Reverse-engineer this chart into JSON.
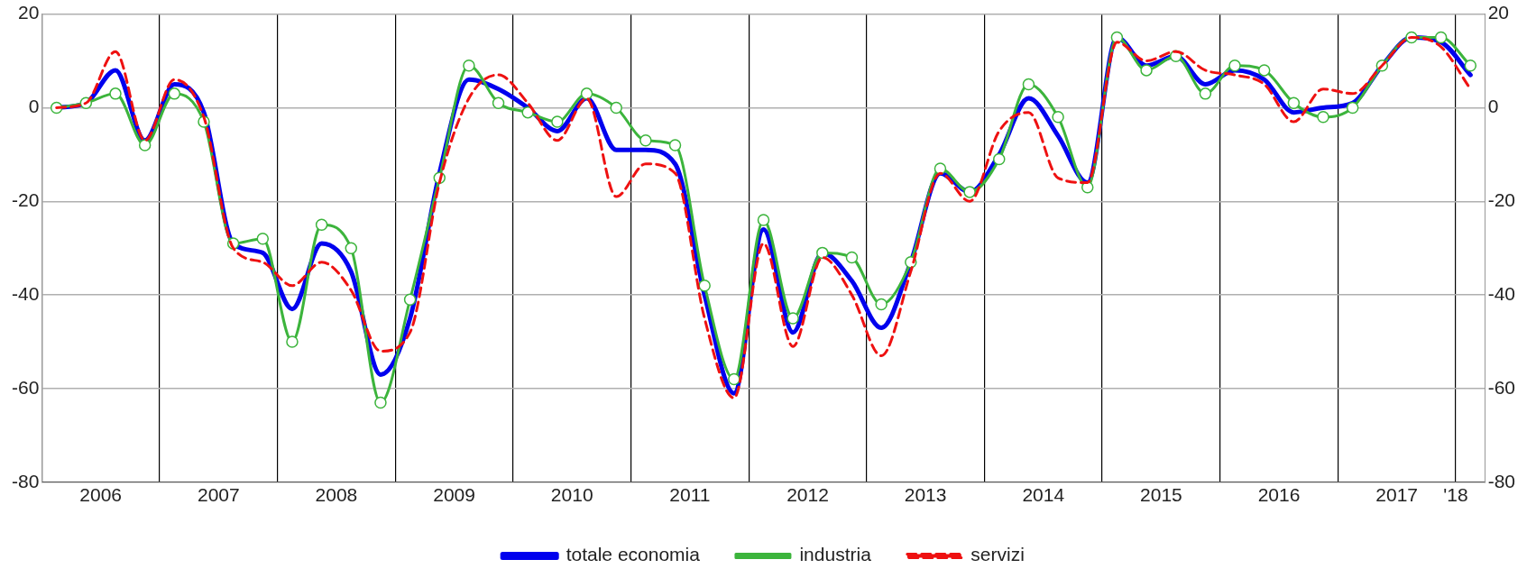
{
  "chart_data": {
    "type": "line",
    "x": [
      2006.125,
      2006.375,
      2006.625,
      2006.875,
      2007.125,
      2007.375,
      2007.625,
      2007.875,
      2008.125,
      2008.375,
      2008.625,
      2008.875,
      2009.125,
      2009.375,
      2009.625,
      2009.875,
      2010.125,
      2010.375,
      2010.625,
      2010.875,
      2011.125,
      2011.375,
      2011.625,
      2011.875,
      2012.125,
      2012.375,
      2012.625,
      2012.875,
      2013.125,
      2013.375,
      2013.625,
      2013.875,
      2014.125,
      2014.375,
      2014.625,
      2014.875,
      2015.125,
      2015.375,
      2015.625,
      2015.875,
      2016.125,
      2016.375,
      2016.625,
      2016.875,
      2017.125,
      2017.375,
      2017.625,
      2017.875,
      2018.125
    ],
    "series": [
      {
        "name": "totale economia",
        "color": "#0000ee",
        "marker": "none",
        "line_style": "solid",
        "values": [
          0,
          1,
          8,
          -7,
          5,
          -1,
          -29,
          -31,
          -43,
          -29,
          -35,
          -57,
          -45,
          -14,
          6,
          4,
          0,
          -5,
          2,
          -9,
          -9,
          -12,
          -40,
          -61,
          -26,
          -48,
          -31,
          -37,
          -47,
          -33,
          -14,
          -18,
          -10,
          2,
          -6,
          -16,
          15,
          9,
          11,
          5,
          8,
          6,
          -1,
          0,
          1,
          9,
          15,
          14,
          7
        ]
      },
      {
        "name": "industria",
        "color": "#3cb43c",
        "marker": "circle",
        "line_style": "solid",
        "values": [
          0,
          1,
          3,
          -8,
          3,
          -3,
          -29,
          -28,
          -50,
          -25,
          -30,
          -63,
          -41,
          -15,
          9,
          1,
          -1,
          -3,
          3,
          0,
          -7,
          -8,
          -38,
          -58,
          -24,
          -45,
          -31,
          -32,
          -42,
          -33,
          -13,
          -18,
          -11,
          5,
          -2,
          -17,
          15,
          8,
          11,
          3,
          9,
          8,
          1,
          -2,
          0,
          9,
          15,
          15,
          9
        ]
      },
      {
        "name": "servizi",
        "color": "#ee1111",
        "marker": "none",
        "line_style": "dashed",
        "values": [
          0,
          1,
          12,
          -7,
          6,
          -2,
          -30,
          -33,
          -38,
          -33,
          -39,
          -52,
          -48,
          -16,
          2,
          7,
          1,
          -7,
          2,
          -19,
          -12,
          -14,
          -45,
          -62,
          -29,
          -51,
          -32,
          -40,
          -53,
          -35,
          -14,
          -20,
          -5,
          -1,
          -15,
          -16,
          14,
          10,
          12,
          8,
          7,
          5,
          -3,
          4,
          3,
          9,
          15,
          13,
          4
        ]
      }
    ],
    "xlim": [
      2006,
      2018.25
    ],
    "xticks": [
      {
        "value": 2006,
        "label": null
      },
      {
        "value": 2006.5,
        "label": "2006"
      },
      {
        "value": 2007,
        "label": null
      },
      {
        "value": 2007.5,
        "label": "2007"
      },
      {
        "value": 2008,
        "label": null
      },
      {
        "value": 2008.5,
        "label": "2008"
      },
      {
        "value": 2009,
        "label": null
      },
      {
        "value": 2009.5,
        "label": "2009"
      },
      {
        "value": 2010,
        "label": null
      },
      {
        "value": 2010.5,
        "label": "2010"
      },
      {
        "value": 2011,
        "label": null
      },
      {
        "value": 2011.5,
        "label": "2011"
      },
      {
        "value": 2012,
        "label": null
      },
      {
        "value": 2012.5,
        "label": "2012"
      },
      {
        "value": 2013,
        "label": null
      },
      {
        "value": 2013.5,
        "label": "2013"
      },
      {
        "value": 2014,
        "label": null
      },
      {
        "value": 2014.5,
        "label": "2014"
      },
      {
        "value": 2015,
        "label": null
      },
      {
        "value": 2015.5,
        "label": "2015"
      },
      {
        "value": 2016,
        "label": null
      },
      {
        "value": 2016.5,
        "label": "2016"
      },
      {
        "value": 2017,
        "label": null
      },
      {
        "value": 2017.5,
        "label": "2017"
      },
      {
        "value": 2018,
        "label": "'18"
      }
    ],
    "ylim": [
      -80,
      20
    ],
    "yticks": [
      -80,
      -60,
      -40,
      -20,
      0,
      20
    ],
    "y2lim": [
      -80,
      20
    ],
    "y2ticks": [
      -80,
      -60,
      -40,
      -20,
      0,
      20
    ],
    "grid": true,
    "legend": "bottom"
  }
}
